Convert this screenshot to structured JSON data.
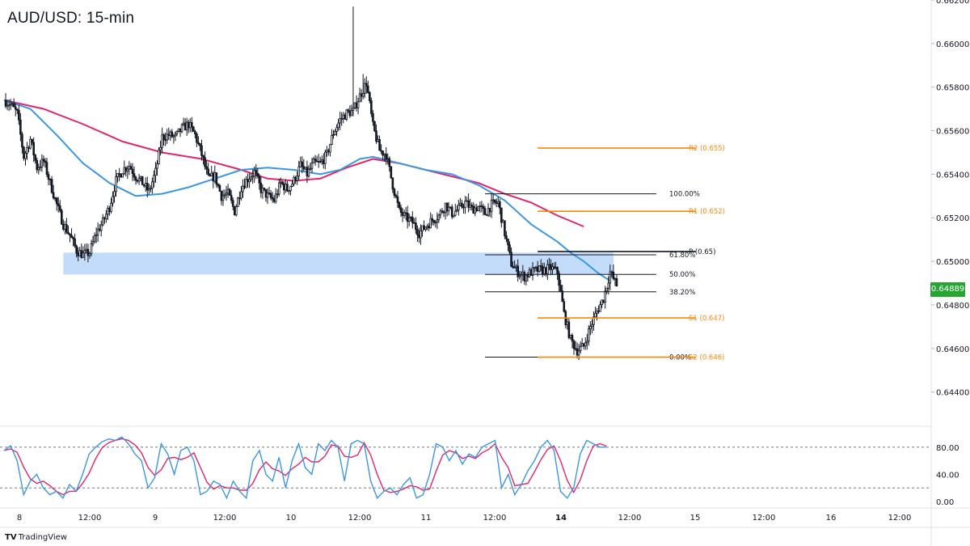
{
  "title": "AUD/USD: 15-min",
  "brand": {
    "logo": "TV",
    "name": "TradingView"
  },
  "last_price_label": "0.64889",
  "colors": {
    "candle": "#131722",
    "ema_fast": "#3b97e3",
    "ema_slow": "#e0266e",
    "pivot": "#f5880c",
    "fib": "#131722",
    "zone": "#a9cdf6",
    "stoch_k": "#3b97e3",
    "stoch_d": "#e0266e",
    "badge": "#26a532",
    "grid": "#e0e3eb",
    "text": "#131722"
  },
  "chart_data": {
    "type": "candlestick",
    "symbol": "AUD/USD",
    "timeframe": "15-min",
    "price_axis": {
      "ticks": [
        "0.66200",
        "0.66000",
        "0.65800",
        "0.65600",
        "0.65400",
        "0.65200",
        "0.65000",
        "0.64800",
        "0.64600",
        "0.64400"
      ],
      "range": [
        0.6425,
        0.662
      ],
      "last_price": 0.64889
    },
    "time_axis": {
      "labels": [
        "8",
        "12:00",
        "9",
        "12:00",
        "10",
        "12:00",
        "11",
        "12:00",
        "14",
        "12:00",
        "15",
        "12:00",
        "16",
        "12:00"
      ],
      "bold": [
        false,
        false,
        false,
        false,
        false,
        false,
        false,
        false,
        true,
        false,
        false,
        false,
        false,
        false
      ]
    },
    "price_path": [
      [
        0,
        0.6574
      ],
      [
        0.5,
        0.6573
      ],
      [
        1,
        0.6572
      ],
      [
        2,
        0.6568
      ],
      [
        3,
        0.6548
      ],
      [
        4,
        0.6556
      ],
      [
        5,
        0.6543
      ],
      [
        6,
        0.6546
      ],
      [
        7,
        0.6536
      ],
      [
        8,
        0.6526
      ],
      [
        9,
        0.6517
      ],
      [
        10,
        0.6512
      ],
      [
        11,
        0.6505
      ],
      [
        12,
        0.6503
      ],
      [
        13,
        0.6504
      ],
      [
        14,
        0.6513
      ],
      [
        15,
        0.6518
      ],
      [
        16,
        0.6525
      ],
      [
        17,
        0.6537
      ],
      [
        18,
        0.6542
      ],
      [
        19,
        0.6544
      ],
      [
        20,
        0.6539
      ],
      [
        21,
        0.6536
      ],
      [
        22,
        0.6532
      ],
      [
        23,
        0.6541
      ],
      [
        24,
        0.6557
      ],
      [
        25,
        0.6558
      ],
      [
        26,
        0.6557
      ],
      [
        27,
        0.6561
      ],
      [
        28,
        0.6563
      ],
      [
        29,
        0.6558
      ],
      [
        30,
        0.6549
      ],
      [
        31,
        0.6538
      ],
      [
        32,
        0.6539
      ],
      [
        33,
        0.653
      ],
      [
        34,
        0.6531
      ],
      [
        35,
        0.6523
      ],
      [
        36,
        0.6534
      ],
      [
        37,
        0.6538
      ],
      [
        38,
        0.6541
      ],
      [
        39,
        0.6533
      ],
      [
        40,
        0.653
      ],
      [
        41,
        0.6528
      ],
      [
        42,
        0.6536
      ],
      [
        43,
        0.6533
      ],
      [
        44,
        0.6537
      ],
      [
        45,
        0.6544
      ],
      [
        46,
        0.654
      ],
      [
        47,
        0.6545
      ],
      [
        48,
        0.6545
      ],
      [
        49,
        0.6549
      ],
      [
        50,
        0.6559
      ],
      [
        51,
        0.6565
      ],
      [
        52,
        0.6568
      ],
      [
        53,
        0.6569
      ],
      [
        54,
        0.6576
      ],
      [
        55,
        0.6582
      ],
      [
        56,
        0.6562
      ],
      [
        57,
        0.6551
      ],
      [
        58,
        0.6549
      ],
      [
        59,
        0.6535
      ],
      [
        60,
        0.6523
      ],
      [
        61,
        0.652
      ],
      [
        62,
        0.6518
      ],
      [
        63,
        0.6513
      ],
      [
        64,
        0.6516
      ],
      [
        65,
        0.6519
      ],
      [
        66,
        0.6521
      ],
      [
        67,
        0.6526
      ],
      [
        68,
        0.6522
      ],
      [
        69,
        0.6524
      ],
      [
        70,
        0.6527
      ],
      [
        71,
        0.6524
      ],
      [
        72,
        0.6525
      ],
      [
        73,
        0.6522
      ],
      [
        74,
        0.6526
      ],
      [
        75,
        0.6527
      ],
      [
        76,
        0.6513
      ],
      [
        77,
        0.6499
      ],
      [
        78,
        0.6495
      ],
      [
        79,
        0.6493
      ],
      [
        80,
        0.6495
      ],
      [
        81,
        0.6496
      ],
      [
        82,
        0.6496
      ],
      [
        83,
        0.6497
      ],
      [
        84,
        0.6495
      ],
      [
        85,
        0.6476
      ],
      [
        86,
        0.6464
      ],
      [
        87,
        0.6459
      ],
      [
        88,
        0.6461
      ],
      [
        89,
        0.647
      ],
      [
        90,
        0.6477
      ],
      [
        91,
        0.6483
      ],
      [
        92,
        0.6495
      ],
      [
        93,
        0.6489
      ]
    ],
    "spikes": [
      {
        "at": 53,
        "high": 0.6617
      },
      {
        "at": 54.5,
        "high": 0.6586
      }
    ],
    "ema_fast": [
      [
        0,
        0.6574
      ],
      [
        4,
        0.657
      ],
      [
        8,
        0.6558
      ],
      [
        12,
        0.6545
      ],
      [
        16,
        0.6536
      ],
      [
        20,
        0.653
      ],
      [
        24,
        0.6531
      ],
      [
        28,
        0.6534
      ],
      [
        32,
        0.6538
      ],
      [
        36,
        0.6542
      ],
      [
        40,
        0.6543
      ],
      [
        44,
        0.6542
      ],
      [
        48,
        0.654
      ],
      [
        51,
        0.6542
      ],
      [
        54,
        0.6547
      ],
      [
        56,
        0.6548
      ],
      [
        60,
        0.6545
      ],
      [
        64,
        0.6542
      ],
      [
        68,
        0.654
      ],
      [
        72,
        0.6535
      ],
      [
        76,
        0.6528
      ],
      [
        80,
        0.6517
      ],
      [
        84,
        0.6509
      ],
      [
        86,
        0.6504
      ],
      [
        88,
        0.65
      ],
      [
        90,
        0.6495
      ],
      [
        92,
        0.6491
      ]
    ],
    "ema_slow": [
      [
        0,
        0.6574
      ],
      [
        6,
        0.657
      ],
      [
        12,
        0.6563
      ],
      [
        18,
        0.6555
      ],
      [
        24,
        0.655
      ],
      [
        30,
        0.6547
      ],
      [
        36,
        0.6542
      ],
      [
        40,
        0.6538
      ],
      [
        44,
        0.6537
      ],
      [
        48,
        0.6538
      ],
      [
        52,
        0.6543
      ],
      [
        56,
        0.6547
      ],
      [
        60,
        0.6545
      ],
      [
        64,
        0.6542
      ],
      [
        68,
        0.6539
      ],
      [
        72,
        0.6536
      ],
      [
        76,
        0.6531
      ],
      [
        80,
        0.6527
      ],
      [
        84,
        0.6521
      ],
      [
        88,
        0.6516
      ]
    ],
    "support_zone": {
      "from": 9,
      "to": 92.5,
      "top": 0.6504,
      "bottom": 0.6494
    },
    "pivot_levels": [
      {
        "label": "R2 (0.655)",
        "price": 0.6552
      },
      {
        "label": "R1 (0.652)",
        "price": 0.6523
      },
      {
        "label": "P (0.65)",
        "price": 0.65045
      },
      {
        "label": "S1 (0.647)",
        "price": 0.6474
      },
      {
        "label": "S2 (0.646)",
        "price": 0.6456
      }
    ],
    "pivot_span": [
      81,
      105
    ],
    "fib_levels": [
      {
        "label": "100.00%",
        "price": 0.6531
      },
      {
        "label": "61.80%",
        "price": 0.6503
      },
      {
        "label": "50.00%",
        "price": 0.6494
      },
      {
        "label": "38.20%",
        "price": 0.6486
      },
      {
        "label": "0.00%",
        "price": 0.6456
      }
    ],
    "fib_span": [
      73,
      99
    ],
    "stochastic": {
      "ticks": [
        "80.00",
        "40.00",
        "0.00"
      ],
      "range": [
        0,
        100
      ],
      "levels": [
        80,
        20
      ],
      "k": [
        [
          0,
          75
        ],
        [
          1,
          82
        ],
        [
          2,
          60
        ],
        [
          3,
          10
        ],
        [
          4,
          30
        ],
        [
          5,
          40
        ],
        [
          6,
          20
        ],
        [
          7,
          10
        ],
        [
          8,
          15
        ],
        [
          9,
          5
        ],
        [
          10,
          25
        ],
        [
          11,
          15
        ],
        [
          12,
          40
        ],
        [
          13,
          70
        ],
        [
          14,
          80
        ],
        [
          15,
          88
        ],
        [
          16,
          92
        ],
        [
          17,
          90
        ],
        [
          18,
          95
        ],
        [
          19,
          85
        ],
        [
          20,
          70
        ],
        [
          21,
          60
        ],
        [
          22,
          20
        ],
        [
          23,
          35
        ],
        [
          24,
          85
        ],
        [
          25,
          70
        ],
        [
          26,
          40
        ],
        [
          27,
          75
        ],
        [
          28,
          80
        ],
        [
          29,
          60
        ],
        [
          30,
          10
        ],
        [
          31,
          15
        ],
        [
          32,
          30
        ],
        [
          33,
          25
        ],
        [
          34,
          5
        ],
        [
          35,
          30
        ],
        [
          36,
          15
        ],
        [
          37,
          5
        ],
        [
          38,
          60
        ],
        [
          39,
          75
        ],
        [
          40,
          40
        ],
        [
          41,
          30
        ],
        [
          42,
          65
        ],
        [
          43,
          20
        ],
        [
          44,
          60
        ],
        [
          45,
          85
        ],
        [
          46,
          50
        ],
        [
          47,
          40
        ],
        [
          48,
          85
        ],
        [
          49,
          75
        ],
        [
          50,
          90
        ],
        [
          51,
          80
        ],
        [
          52,
          30
        ],
        [
          53,
          85
        ],
        [
          54,
          90
        ],
        [
          55,
          85
        ],
        [
          56,
          30
        ],
        [
          57,
          5
        ],
        [
          58,
          15
        ],
        [
          59,
          20
        ],
        [
          60,
          10
        ],
        [
          61,
          25
        ],
        [
          62,
          35
        ],
        [
          63,
          5
        ],
        [
          64,
          10
        ],
        [
          65,
          40
        ],
        [
          66,
          85
        ],
        [
          67,
          80
        ],
        [
          68,
          60
        ],
        [
          69,
          75
        ],
        [
          70,
          55
        ],
        [
          71,
          70
        ],
        [
          72,
          65
        ],
        [
          73,
          80
        ],
        [
          74,
          85
        ],
        [
          75,
          90
        ],
        [
          76,
          20
        ],
        [
          77,
          40
        ],
        [
          78,
          10
        ],
        [
          79,
          25
        ],
        [
          80,
          45
        ],
        [
          81,
          60
        ],
        [
          82,
          80
        ],
        [
          83,
          90
        ],
        [
          84,
          75
        ],
        [
          85,
          15
        ],
        [
          86,
          5
        ],
        [
          87,
          20
        ],
        [
          88,
          70
        ],
        [
          89,
          90
        ],
        [
          90,
          85
        ],
        [
          91,
          80
        ],
        [
          92,
          80
        ]
      ]
    }
  }
}
